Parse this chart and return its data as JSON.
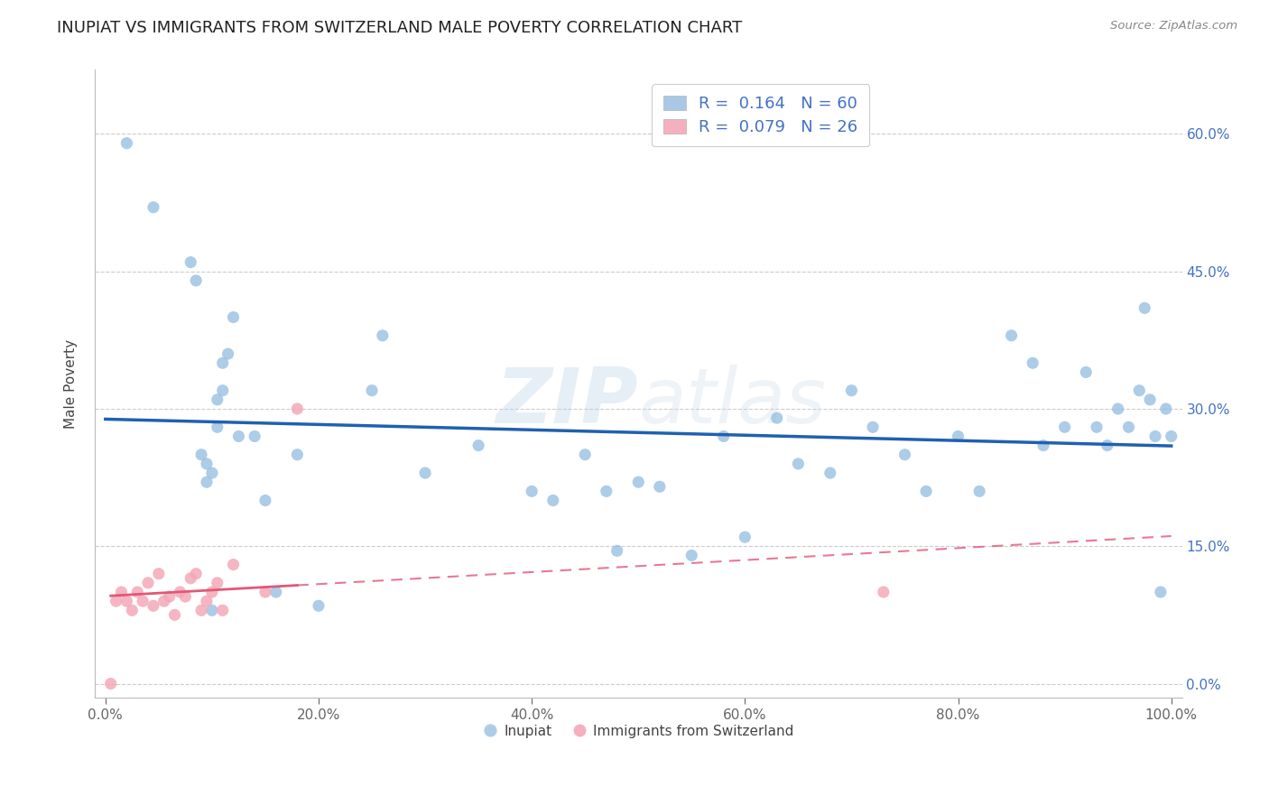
{
  "title": "INUPIAT VS IMMIGRANTS FROM SWITZERLAND MALE POVERTY CORRELATION CHART",
  "source": "Source: ZipAtlas.com",
  "ylabel": "Male Poverty",
  "watermark": "ZIPatlas",
  "legend_r1": "R =  0.164   N = 60",
  "legend_r2": "R =  0.079   N = 26",
  "legend_label1": "Inupiat",
  "legend_label2": "Immigrants from Switzerland",
  "blue_color": "#92bce0",
  "pink_color": "#f4a8b8",
  "line_blue": "#2060b0",
  "line_pink": "#e05878",
  "inupiat_x": [
    2.0,
    4.5,
    8.0,
    8.5,
    9.0,
    9.5,
    9.5,
    10.0,
    10.0,
    10.5,
    10.5,
    11.0,
    11.0,
    11.5,
    12.0,
    12.5,
    14.0,
    15.0,
    16.0,
    18.0,
    20.0,
    25.0,
    26.0,
    30.0,
    35.0,
    40.0,
    42.0,
    45.0,
    47.0,
    48.0,
    50.0,
    52.0,
    55.0,
    58.0,
    60.0,
    63.0,
    65.0,
    68.0,
    70.0,
    72.0,
    75.0,
    77.0,
    80.0,
    82.0,
    85.0,
    87.0,
    88.0,
    90.0,
    92.0,
    93.0,
    94.0,
    95.0,
    96.0,
    97.0,
    97.5,
    98.0,
    98.5,
    99.0,
    99.5,
    100.0
  ],
  "inupiat_y": [
    59.0,
    52.0,
    46.0,
    44.0,
    25.0,
    24.0,
    22.0,
    23.0,
    8.0,
    31.0,
    28.0,
    35.0,
    32.0,
    36.0,
    40.0,
    27.0,
    27.0,
    20.0,
    10.0,
    25.0,
    8.5,
    32.0,
    38.0,
    23.0,
    26.0,
    21.0,
    20.0,
    25.0,
    21.0,
    14.5,
    22.0,
    21.5,
    14.0,
    27.0,
    16.0,
    29.0,
    24.0,
    23.0,
    32.0,
    28.0,
    25.0,
    21.0,
    27.0,
    21.0,
    38.0,
    35.0,
    26.0,
    28.0,
    34.0,
    28.0,
    26.0,
    30.0,
    28.0,
    32.0,
    41.0,
    31.0,
    27.0,
    10.0,
    30.0,
    27.0
  ],
  "swiss_x": [
    0.5,
    1.0,
    1.5,
    2.0,
    2.5,
    3.0,
    3.5,
    4.0,
    4.5,
    5.0,
    5.5,
    6.0,
    6.5,
    7.0,
    7.5,
    8.0,
    8.5,
    9.0,
    9.5,
    10.0,
    10.5,
    11.0,
    12.0,
    15.0,
    18.0,
    73.0
  ],
  "swiss_y": [
    0.0,
    9.0,
    10.0,
    9.0,
    8.0,
    10.0,
    9.0,
    11.0,
    8.5,
    12.0,
    9.0,
    9.5,
    7.5,
    10.0,
    9.5,
    11.5,
    12.0,
    8.0,
    9.0,
    10.0,
    11.0,
    8.0,
    13.0,
    10.0,
    30.0,
    10.0
  ],
  "xlim": [
    0.0,
    100.0
  ],
  "ylim": [
    0.0,
    65.0
  ],
  "xtick_vals": [
    0.0,
    20.0,
    40.0,
    60.0,
    80.0,
    100.0
  ],
  "xtick_labels": [
    "0.0%",
    "20.0%",
    "40.0%",
    "60.0%",
    "80.0%",
    "100.0%"
  ],
  "ytick_vals": [
    0.0,
    15.0,
    30.0,
    45.0,
    60.0
  ],
  "ytick_labels_right": [
    "0.0%",
    "15.0%",
    "30.0%",
    "45.0%",
    "60.0%"
  ],
  "grid_color": "#cccccc",
  "bg_color": "#ffffff",
  "title_fontsize": 13,
  "label_fontsize": 11,
  "tick_fontsize": 11,
  "marker_size": 90
}
